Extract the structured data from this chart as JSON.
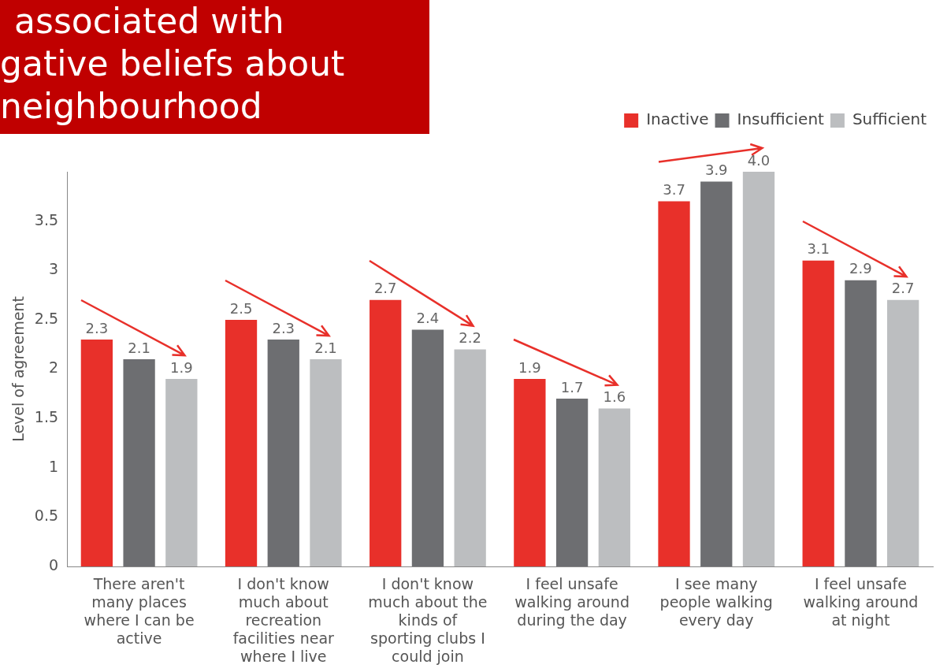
{
  "chart_data": {
    "type": "bar",
    "title": "associated with\ngative beliefs about\nneighbourhood",
    "ylabel": "Level of agreement",
    "categories": [
      "There aren't many places where I can be active",
      "I don't know much about recreation facilities near where I live",
      "I don't know much about the kinds of sporting clubs I could join",
      "I feel unsafe walking around during the day",
      "I see many people walking every day",
      "I feel unsafe walking around at night"
    ],
    "series": [
      {
        "name": "Inactive",
        "color": "#e8302a",
        "values": [
          2.3,
          2.5,
          2.7,
          1.9,
          3.7,
          3.1
        ],
        "value_labels": [
          "2.3",
          "2.5",
          "2.7",
          "1.9",
          "3.7",
          "3.1"
        ]
      },
      {
        "name": "Insufficient",
        "color": "#6d6e71",
        "values": [
          2.1,
          2.3,
          2.4,
          1.7,
          3.9,
          2.9
        ],
        "value_labels": [
          "2.1",
          "2.3",
          "2.4",
          "1.7",
          "3.9",
          "2.9"
        ]
      },
      {
        "name": "Sufficient",
        "color": "#bcbec0",
        "values": [
          1.9,
          2.1,
          2.2,
          1.6,
          4.0,
          2.7
        ],
        "value_labels": [
          "1.9",
          "2.1",
          "2.2",
          "1.6",
          "4.0",
          "2.7"
        ]
      }
    ],
    "ylim": [
      0,
      4
    ],
    "yticks": [
      0,
      0.5,
      1,
      1.5,
      2,
      2.5,
      3,
      3.5
    ],
    "grid": false,
    "legend": "top right"
  }
}
